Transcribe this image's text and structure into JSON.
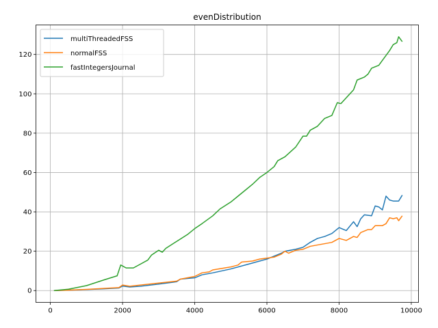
{
  "chart_data": {
    "type": "line",
    "title": "evenDistribution",
    "xlabel": "",
    "ylabel": "",
    "xlim": [
      -400,
      10200
    ],
    "ylim": [
      -6,
      135
    ],
    "xticks": [
      0,
      2000,
      4000,
      6000,
      8000,
      10000
    ],
    "yticks": [
      0,
      20,
      40,
      60,
      80,
      100,
      120
    ],
    "grid": true,
    "legend": "top-left",
    "series": [
      {
        "name": "multiThreadedFSS",
        "color": "#1f77b4",
        "points": [
          [
            100,
            0
          ],
          [
            500,
            0.2
          ],
          [
            1000,
            0.5
          ],
          [
            1500,
            0.9
          ],
          [
            1900,
            1.3
          ],
          [
            2000,
            2.3
          ],
          [
            2200,
            1.8
          ],
          [
            2500,
            2.2
          ],
          [
            3000,
            3.3
          ],
          [
            3500,
            4.5
          ],
          [
            3600,
            5.8
          ],
          [
            4000,
            6.5
          ],
          [
            4200,
            8
          ],
          [
            4500,
            9
          ],
          [
            5000,
            11
          ],
          [
            5500,
            13.5
          ],
          [
            5800,
            15
          ],
          [
            6000,
            16
          ],
          [
            6200,
            17.5
          ],
          [
            6400,
            19
          ],
          [
            6500,
            20
          ],
          [
            6800,
            21
          ],
          [
            7000,
            22
          ],
          [
            7200,
            24.5
          ],
          [
            7400,
            26.5
          ],
          [
            7600,
            27.5
          ],
          [
            7800,
            29
          ],
          [
            8000,
            32
          ],
          [
            8200,
            30.5
          ],
          [
            8400,
            35
          ],
          [
            8500,
            32.5
          ],
          [
            8600,
            36.5
          ],
          [
            8700,
            38.5
          ],
          [
            8900,
            38
          ],
          [
            9000,
            43
          ],
          [
            9100,
            42.5
          ],
          [
            9200,
            41
          ],
          [
            9300,
            48
          ],
          [
            9400,
            46
          ],
          [
            9500,
            45.5
          ],
          [
            9650,
            45.5
          ],
          [
            9750,
            48.5
          ]
        ]
      },
      {
        "name": "normalFSS",
        "color": "#ff7f0e",
        "points": [
          [
            100,
            0
          ],
          [
            500,
            0.2
          ],
          [
            1000,
            0.6
          ],
          [
            1500,
            1.1
          ],
          [
            1900,
            1.5
          ],
          [
            2000,
            2.8
          ],
          [
            2200,
            2.2
          ],
          [
            2500,
            2.8
          ],
          [
            3000,
            3.8
          ],
          [
            3500,
            4.8
          ],
          [
            3600,
            5.8
          ],
          [
            4000,
            7.2
          ],
          [
            4200,
            9
          ],
          [
            4400,
            9.5
          ],
          [
            4500,
            10.5
          ],
          [
            5000,
            12
          ],
          [
            5200,
            13
          ],
          [
            5300,
            14.5
          ],
          [
            5600,
            15
          ],
          [
            5800,
            16
          ],
          [
            6000,
            16.5
          ],
          [
            6200,
            17
          ],
          [
            6400,
            18.5
          ],
          [
            6500,
            20
          ],
          [
            6600,
            19
          ],
          [
            6800,
            20.5
          ],
          [
            7000,
            21
          ],
          [
            7200,
            22.5
          ],
          [
            7500,
            23.5
          ],
          [
            7800,
            24.5
          ],
          [
            8000,
            26.5
          ],
          [
            8200,
            25.5
          ],
          [
            8400,
            27.5
          ],
          [
            8500,
            27
          ],
          [
            8600,
            29.5
          ],
          [
            8800,
            31
          ],
          [
            8900,
            31
          ],
          [
            9000,
            33
          ],
          [
            9200,
            33
          ],
          [
            9300,
            34
          ],
          [
            9400,
            37
          ],
          [
            9500,
            36.5
          ],
          [
            9600,
            37
          ],
          [
            9650,
            35.5
          ],
          [
            9750,
            38
          ]
        ]
      },
      {
        "name": "fastIntegersJournal",
        "color": "#2ca02c",
        "points": [
          [
            100,
            0
          ],
          [
            500,
            0.7
          ],
          [
            1000,
            2.5
          ],
          [
            1500,
            5.5
          ],
          [
            1850,
            7.5
          ],
          [
            1950,
            13
          ],
          [
            2100,
            11.5
          ],
          [
            2300,
            11.5
          ],
          [
            2500,
            13.5
          ],
          [
            2700,
            15.5
          ],
          [
            2800,
            18
          ],
          [
            3000,
            20.5
          ],
          [
            3100,
            19.5
          ],
          [
            3200,
            21.5
          ],
          [
            3500,
            25
          ],
          [
            3800,
            28.5
          ],
          [
            4000,
            31.5
          ],
          [
            4200,
            34
          ],
          [
            4500,
            38
          ],
          [
            4700,
            41.5
          ],
          [
            5000,
            45
          ],
          [
            5200,
            48
          ],
          [
            5400,
            51
          ],
          [
            5600,
            54
          ],
          [
            5800,
            57.5
          ],
          [
            6000,
            60
          ],
          [
            6200,
            63
          ],
          [
            6300,
            66
          ],
          [
            6500,
            68
          ],
          [
            6800,
            73
          ],
          [
            7000,
            78.5
          ],
          [
            7100,
            78.5
          ],
          [
            7200,
            81.5
          ],
          [
            7400,
            83.5
          ],
          [
            7600,
            87.5
          ],
          [
            7800,
            89
          ],
          [
            7950,
            95.5
          ],
          [
            8050,
            95
          ],
          [
            8200,
            98
          ],
          [
            8400,
            102
          ],
          [
            8500,
            107
          ],
          [
            8700,
            108.5
          ],
          [
            8800,
            110
          ],
          [
            8900,
            113
          ],
          [
            9100,
            114.5
          ],
          [
            9200,
            117
          ],
          [
            9400,
            122
          ],
          [
            9500,
            125
          ],
          [
            9600,
            126
          ],
          [
            9650,
            129
          ],
          [
            9750,
            126.5
          ]
        ]
      }
    ]
  }
}
